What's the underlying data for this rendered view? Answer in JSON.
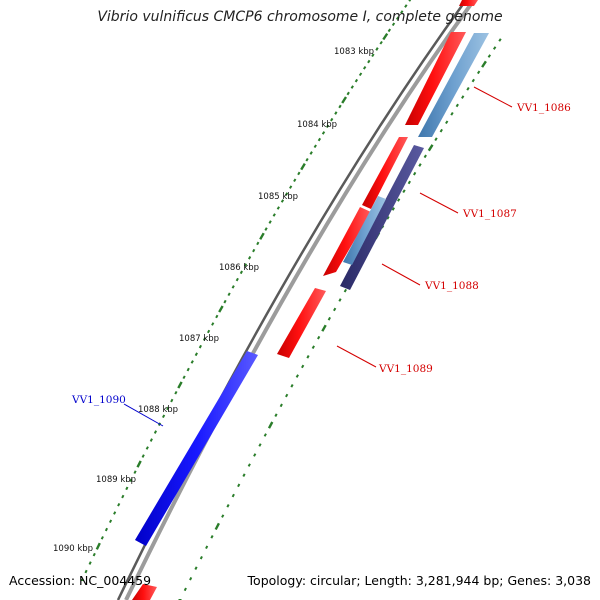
{
  "title": "Vibrio vulnificus CMCP6 chromosome I, complete genome",
  "footer": {
    "accession_label": "Accession:",
    "accession": "NC_004459",
    "topology_label": "Topology:",
    "topology": "circular",
    "length_label": "Length:",
    "length": "3,281,944 bp",
    "genes_label": "Genes:",
    "genes": "3,038"
  },
  "colors": {
    "forward_gene": "#ff0000",
    "reverse_gene": "#5b8fc4",
    "dark_gene": "#3a3a7a",
    "highlight_gene": "#0000ff",
    "backbone": "#9a9a9a",
    "tick": "#2a7d2a",
    "label_red": "#d40000",
    "label_blue": "#0000cc"
  },
  "ticks": [
    {
      "label": "1083 kbp"
    },
    {
      "label": "1084 kbp"
    },
    {
      "label": "1085 kbp"
    },
    {
      "label": "1086 kbp"
    },
    {
      "label": "1087 kbp"
    },
    {
      "label": "1088 kbp"
    },
    {
      "label": "1089 kbp"
    },
    {
      "label": "1090 kbp"
    }
  ],
  "gene_labels": [
    {
      "name": "VV1_1086",
      "color": "red"
    },
    {
      "name": "VV1_1087",
      "color": "red"
    },
    {
      "name": "VV1_1088",
      "color": "red"
    },
    {
      "name": "VV1_1089",
      "color": "red"
    },
    {
      "name": "VV1_1090",
      "color": "blue"
    }
  ]
}
